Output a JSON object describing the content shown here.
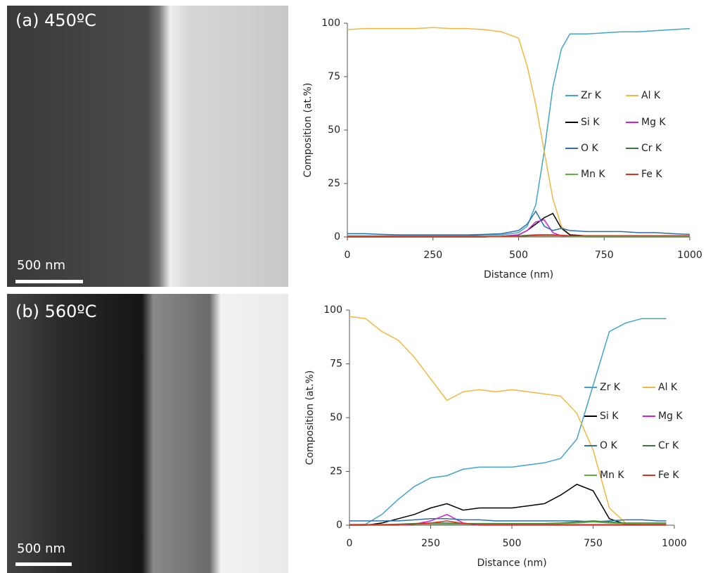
{
  "images": [
    {
      "label": "(a) 450ºC",
      "scale_bar": "500 nm"
    },
    {
      "label": "(b) 560ºC",
      "scale_bar": "500 nm"
    }
  ],
  "chart_data": [
    {
      "type": "line",
      "xlabel": "Distance (nm)",
      "ylabel": "Composition (at.%)",
      "xlim": [
        0,
        1000
      ],
      "ylim": [
        0,
        100
      ],
      "xticks": [
        0,
        250,
        500,
        750,
        1000
      ],
      "yticks": [
        0,
        25,
        50,
        75,
        100
      ],
      "x": [
        0,
        50,
        100,
        150,
        200,
        250,
        300,
        350,
        400,
        450,
        500,
        525,
        550,
        575,
        600,
        625,
        650,
        700,
        750,
        800,
        850,
        900,
        950,
        1000
      ],
      "series": [
        {
          "name": "Zr K",
          "color": "#41a5c9",
          "values": [
            0.5,
            0.5,
            0.5,
            0.5,
            0.5,
            0.5,
            0.5,
            0.5,
            1,
            1,
            2,
            5,
            15,
            40,
            70,
            88,
            95,
            95,
            95.5,
            96,
            96,
            96.5,
            97,
            97.5
          ]
        },
        {
          "name": "Al K",
          "color": "#f0b840",
          "values": [
            97,
            97.5,
            97.5,
            97.5,
            97.5,
            98,
            97.5,
            97.5,
            97,
            96,
            93,
            80,
            62,
            40,
            18,
            5,
            1,
            0.5,
            0.5,
            0.5,
            0.5,
            0.5,
            0.5,
            0.5
          ]
        },
        {
          "name": "Si K",
          "color": "#000000",
          "values": [
            0,
            0,
            0,
            0,
            0,
            0,
            0,
            0,
            0,
            0.3,
            1,
            3,
            6,
            9,
            11,
            4,
            1,
            0.5,
            0.3,
            0.3,
            0.3,
            0.3,
            0.3,
            0.3
          ]
        },
        {
          "name": "Mg K",
          "color": "#d020d0",
          "values": [
            0,
            0,
            0,
            0,
            0,
            0,
            0,
            0,
            0,
            0.2,
            1,
            3,
            7,
            8,
            2,
            0.5,
            0.2,
            0,
            0,
            0,
            0,
            0,
            0,
            0
          ]
        },
        {
          "name": "O K",
          "color": "#2f6fa8",
          "values": [
            1.5,
            1.5,
            1.2,
            1,
            1,
            1,
            1,
            1,
            1.2,
            1.5,
            3,
            6,
            12,
            5,
            3,
            4,
            3,
            2.5,
            2.5,
            2.5,
            2,
            2,
            1.5,
            1.2
          ]
        },
        {
          "name": "Cr K",
          "color": "#3b7a3b",
          "values": [
            0.3,
            0.3,
            0.3,
            0.3,
            0.3,
            0.3,
            0.3,
            0.3,
            0.3,
            0.3,
            0.5,
            0.8,
            1,
            1,
            1,
            0.8,
            0.5,
            0.5,
            0.5,
            0.5,
            0.5,
            0.5,
            0.5,
            0.5
          ]
        },
        {
          "name": "Mn K",
          "color": "#5cb040",
          "values": [
            0.2,
            0.2,
            0.2,
            0.2,
            0.2,
            0.2,
            0.2,
            0.2,
            0.2,
            0.2,
            0.3,
            0.5,
            0.5,
            0.5,
            0.5,
            0.5,
            0.3,
            0.3,
            0.3,
            0.3,
            0.3,
            0.3,
            0.3,
            0.3
          ]
        },
        {
          "name": "Fe K",
          "color": "#e03020",
          "values": [
            0.3,
            0.3,
            0.3,
            0.3,
            0.3,
            0.3,
            0.3,
            0.3,
            0.3,
            0.3,
            0.4,
            0.5,
            0.8,
            1,
            1,
            0.8,
            0.6,
            0.6,
            0.6,
            0.6,
            0.6,
            0.6,
            0.6,
            0.6
          ]
        }
      ]
    },
    {
      "type": "line",
      "xlabel": "Distance (nm)",
      "ylabel": "Composition (at.%)",
      "xlim": [
        0,
        1000
      ],
      "ylim": [
        0,
        100
      ],
      "xticks": [
        0,
        250,
        500,
        750,
        1000
      ],
      "yticks": [
        0,
        25,
        50,
        75,
        100
      ],
      "x": [
        0,
        50,
        100,
        150,
        200,
        250,
        300,
        350,
        400,
        450,
        500,
        550,
        600,
        650,
        700,
        750,
        800,
        850,
        900,
        950,
        975
      ],
      "series": [
        {
          "name": "Zr K",
          "color": "#41a5c9",
          "values": [
            0,
            0.5,
            5,
            12,
            18,
            22,
            23,
            26,
            27,
            27,
            27,
            28,
            29,
            31,
            40,
            65,
            90,
            94,
            96,
            96,
            96
          ]
        },
        {
          "name": "Al K",
          "color": "#f0b840",
          "values": [
            97,
            96,
            90,
            86,
            78,
            68,
            58,
            62,
            63,
            62,
            63,
            62,
            61,
            60,
            52,
            35,
            8,
            1,
            0.5,
            0.5,
            0.5
          ]
        },
        {
          "name": "Si K",
          "color": "#000000",
          "values": [
            0,
            0,
            1,
            3,
            5,
            8,
            10,
            7,
            8,
            8,
            8,
            9,
            10,
            14,
            19,
            16,
            3,
            0.5,
            0.3,
            0.3,
            0.3
          ]
        },
        {
          "name": "Mg K",
          "color": "#d020d0",
          "values": [
            0,
            0,
            0,
            0,
            0.5,
            2,
            5,
            1,
            0,
            0,
            0,
            0,
            0,
            0,
            0,
            0,
            0,
            0,
            0,
            0,
            0
          ]
        },
        {
          "name": "O K",
          "color": "#2f6fa8",
          "values": [
            2,
            2,
            2,
            2,
            2.5,
            3,
            3,
            2.5,
            2.5,
            2,
            2,
            2,
            2,
            2,
            2,
            1.5,
            2,
            2.5,
            2.5,
            2,
            2
          ]
        },
        {
          "name": "Cr K",
          "color": "#3b7a3b",
          "values": [
            0.3,
            0.3,
            0.3,
            0.5,
            0.8,
            1,
            1,
            0.8,
            0.8,
            0.8,
            0.8,
            0.8,
            0.8,
            1,
            1.5,
            2,
            1.5,
            1,
            1,
            1,
            1
          ]
        },
        {
          "name": "Mn K",
          "color": "#5cb040",
          "values": [
            0.2,
            0.2,
            0.2,
            0.3,
            0.5,
            0.5,
            0.5,
            0.5,
            0.5,
            0.5,
            0.5,
            0.5,
            0.5,
            0.8,
            1,
            1.5,
            1,
            0.8,
            0.8,
            0.8,
            0.8
          ]
        },
        {
          "name": "Fe K",
          "color": "#e03020",
          "values": [
            0.3,
            0.3,
            0.3,
            0.3,
            0.5,
            1,
            2,
            0.8,
            0.3,
            0.3,
            0.3,
            0.3,
            0.3,
            0.3,
            0.3,
            0.3,
            0.3,
            0.3,
            0.3,
            0.3,
            0.3
          ]
        }
      ]
    }
  ]
}
